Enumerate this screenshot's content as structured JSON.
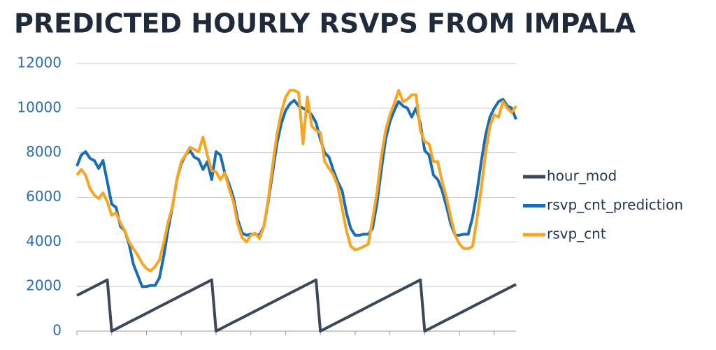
{
  "chart_data": {
    "type": "line",
    "title": "PREDICTED HOURLY RSVPS FROM IMPALA",
    "categories": [
      null,
      null,
      null,
      null,
      null,
      null,
      null,
      null,
      null,
      null,
      null,
      null,
      null,
      null,
      null,
      null,
      null,
      null,
      null,
      null,
      null,
      null,
      null,
      null,
      null,
      null,
      null,
      null,
      null,
      null,
      null,
      null,
      null,
      null,
      null,
      null,
      null,
      null,
      null,
      null,
      null,
      null,
      null,
      null,
      null,
      null,
      null,
      null,
      null,
      null,
      null,
      null,
      null,
      null,
      null,
      null,
      null,
      null,
      null,
      null,
      null,
      null,
      null,
      null,
      null,
      null,
      null,
      null,
      null,
      null,
      null,
      null,
      null,
      null,
      null,
      null,
      null,
      null,
      null,
      null,
      null,
      null,
      null,
      null,
      null,
      null,
      null,
      null,
      null,
      null,
      null,
      null,
      null,
      null,
      null,
      null,
      null,
      null,
      null,
      null,
      null,
      null
    ],
    "series": [
      {
        "name": "hour_mod",
        "color": "#3b4859",
        "values": [
          1600,
          1700,
          1800,
          1900,
          2000,
          2100,
          2200,
          2300,
          0,
          100,
          200,
          300,
          400,
          500,
          600,
          700,
          800,
          900,
          1000,
          1100,
          1200,
          1300,
          1400,
          1500,
          1600,
          1700,
          1800,
          1900,
          2000,
          2100,
          2200,
          2300,
          0,
          100,
          200,
          300,
          400,
          500,
          600,
          700,
          800,
          900,
          1000,
          1100,
          1200,
          1300,
          1400,
          1500,
          1600,
          1700,
          1800,
          1900,
          2000,
          2100,
          2200,
          2300,
          0,
          100,
          200,
          300,
          400,
          500,
          600,
          700,
          800,
          900,
          1000,
          1100,
          1200,
          1300,
          1400,
          1500,
          1600,
          1700,
          1800,
          1900,
          2000,
          2100,
          2200,
          2300,
          0,
          100,
          200,
          300,
          400,
          500,
          600,
          700,
          800,
          900,
          1000,
          1100,
          1200,
          1300,
          1400,
          1500,
          1600,
          1700,
          1800,
          1900,
          2000,
          2100
        ]
      },
      {
        "name": "rsvp_cnt_prediction",
        "color": "#1b6db3",
        "values": [
          7400,
          7900,
          8050,
          7750,
          7650,
          7300,
          7650,
          6700,
          5700,
          5550,
          4700,
          4500,
          3900,
          3000,
          2500,
          2000,
          2000,
          2050,
          2050,
          2400,
          3400,
          4600,
          5600,
          6800,
          7500,
          7900,
          8100,
          7800,
          7700,
          7250,
          7600,
          6800,
          8050,
          7900,
          7100,
          6600,
          6000,
          5000,
          4400,
          4300,
          4350,
          4350,
          4300,
          4700,
          5800,
          7100,
          8400,
          9300,
          9900,
          10200,
          10350,
          10100,
          10000,
          9900,
          9700,
          9350,
          8600,
          8000,
          7800,
          7200,
          6700,
          6300,
          5300,
          4600,
          4300,
          4300,
          4350,
          4350,
          4600,
          5700,
          7200,
          8600,
          9400,
          9900,
          10300,
          10100,
          10000,
          9600,
          10000,
          9300,
          8100,
          7900,
          7000,
          6800,
          6300,
          5600,
          4800,
          4300,
          4300,
          4350,
          4350,
          5100,
          6200,
          7600,
          8800,
          9600,
          10000,
          10300,
          10400,
          10100,
          10000,
          9500
        ]
      },
      {
        "name": "rsvp_cnt",
        "color": "#f7a522",
        "values": [
          7000,
          7250,
          7000,
          6400,
          6100,
          5950,
          6200,
          5800,
          5200,
          5300,
          4850,
          4500,
          4000,
          3700,
          3400,
          3050,
          2800,
          2700,
          2900,
          3200,
          4000,
          4900,
          5600,
          6800,
          7600,
          7900,
          8250,
          8150,
          8050,
          8700,
          7900,
          7200,
          7150,
          6800,
          7100,
          6400,
          5800,
          4800,
          4200,
          4000,
          4300,
          4400,
          4150,
          4700,
          5900,
          7400,
          8800,
          9800,
          10500,
          10800,
          10800,
          10700,
          8400,
          10500,
          9200,
          9000,
          8900,
          7600,
          7300,
          7000,
          6500,
          5500,
          4500,
          3800,
          3650,
          3700,
          3800,
          3900,
          5000,
          6200,
          7800,
          9000,
          9700,
          10200,
          10800,
          10300,
          10400,
          10600,
          10600,
          9000,
          8500,
          8400,
          7600,
          7600,
          6700,
          6000,
          5100,
          4300,
          3900,
          3700,
          3700,
          3800,
          5000,
          6400,
          8000,
          9200,
          9700,
          9600,
          10300,
          10000,
          9800,
          10100
        ]
      }
    ],
    "ylim": [
      0,
      12000
    ],
    "yticks": [
      0,
      2000,
      4000,
      6000,
      8000,
      10000,
      12000
    ],
    "grid": true,
    "legend": "right"
  }
}
